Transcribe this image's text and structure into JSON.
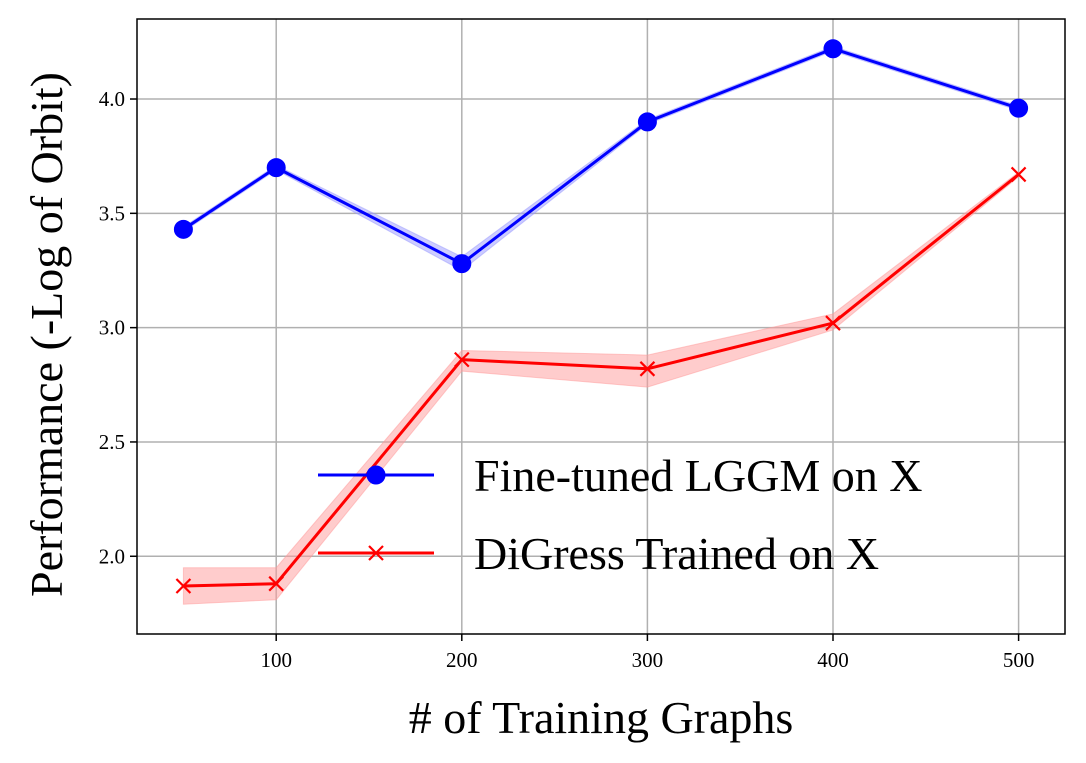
{
  "chart_data": {
    "type": "line",
    "xlabel": "# of Training Graphs",
    "ylabel": "Performance (-Log of Orbit)",
    "xlim": [
      25,
      525
    ],
    "ylim": [
      1.66,
      4.35
    ],
    "xticks": [
      100,
      200,
      300,
      400,
      500
    ],
    "yticks": [
      2.0,
      2.5,
      3.0,
      3.5,
      4.0
    ],
    "xtick_labels": [
      "100",
      "200",
      "300",
      "400",
      "500"
    ],
    "ytick_labels": [
      "2.0",
      "2.5",
      "3.0",
      "3.5",
      "4.0"
    ],
    "grid": true,
    "legend_position": "lower-right",
    "x": [
      50,
      100,
      200,
      300,
      400,
      500
    ],
    "series": [
      {
        "name": "Fine-tuned LGGM on X",
        "values": [
          3.43,
          3.7,
          3.28,
          3.9,
          4.22,
          3.96
        ],
        "band_low": [
          3.42,
          3.69,
          3.25,
          3.89,
          4.21,
          3.95
        ],
        "band_high": [
          3.44,
          3.71,
          3.31,
          3.91,
          4.23,
          3.97
        ],
        "color": "#0000ff",
        "band_color": "#9999ff",
        "marker": "circle"
      },
      {
        "name": "DiGress Trained on X",
        "values": [
          1.87,
          1.88,
          2.86,
          2.82,
          3.02,
          3.67
        ],
        "band_low": [
          1.79,
          1.81,
          2.81,
          2.74,
          2.99,
          3.66
        ],
        "band_high": [
          1.95,
          1.95,
          2.9,
          2.88,
          3.06,
          3.68
        ],
        "color": "#ff0000",
        "band_color": "#ff9999",
        "marker": "x"
      }
    ]
  }
}
